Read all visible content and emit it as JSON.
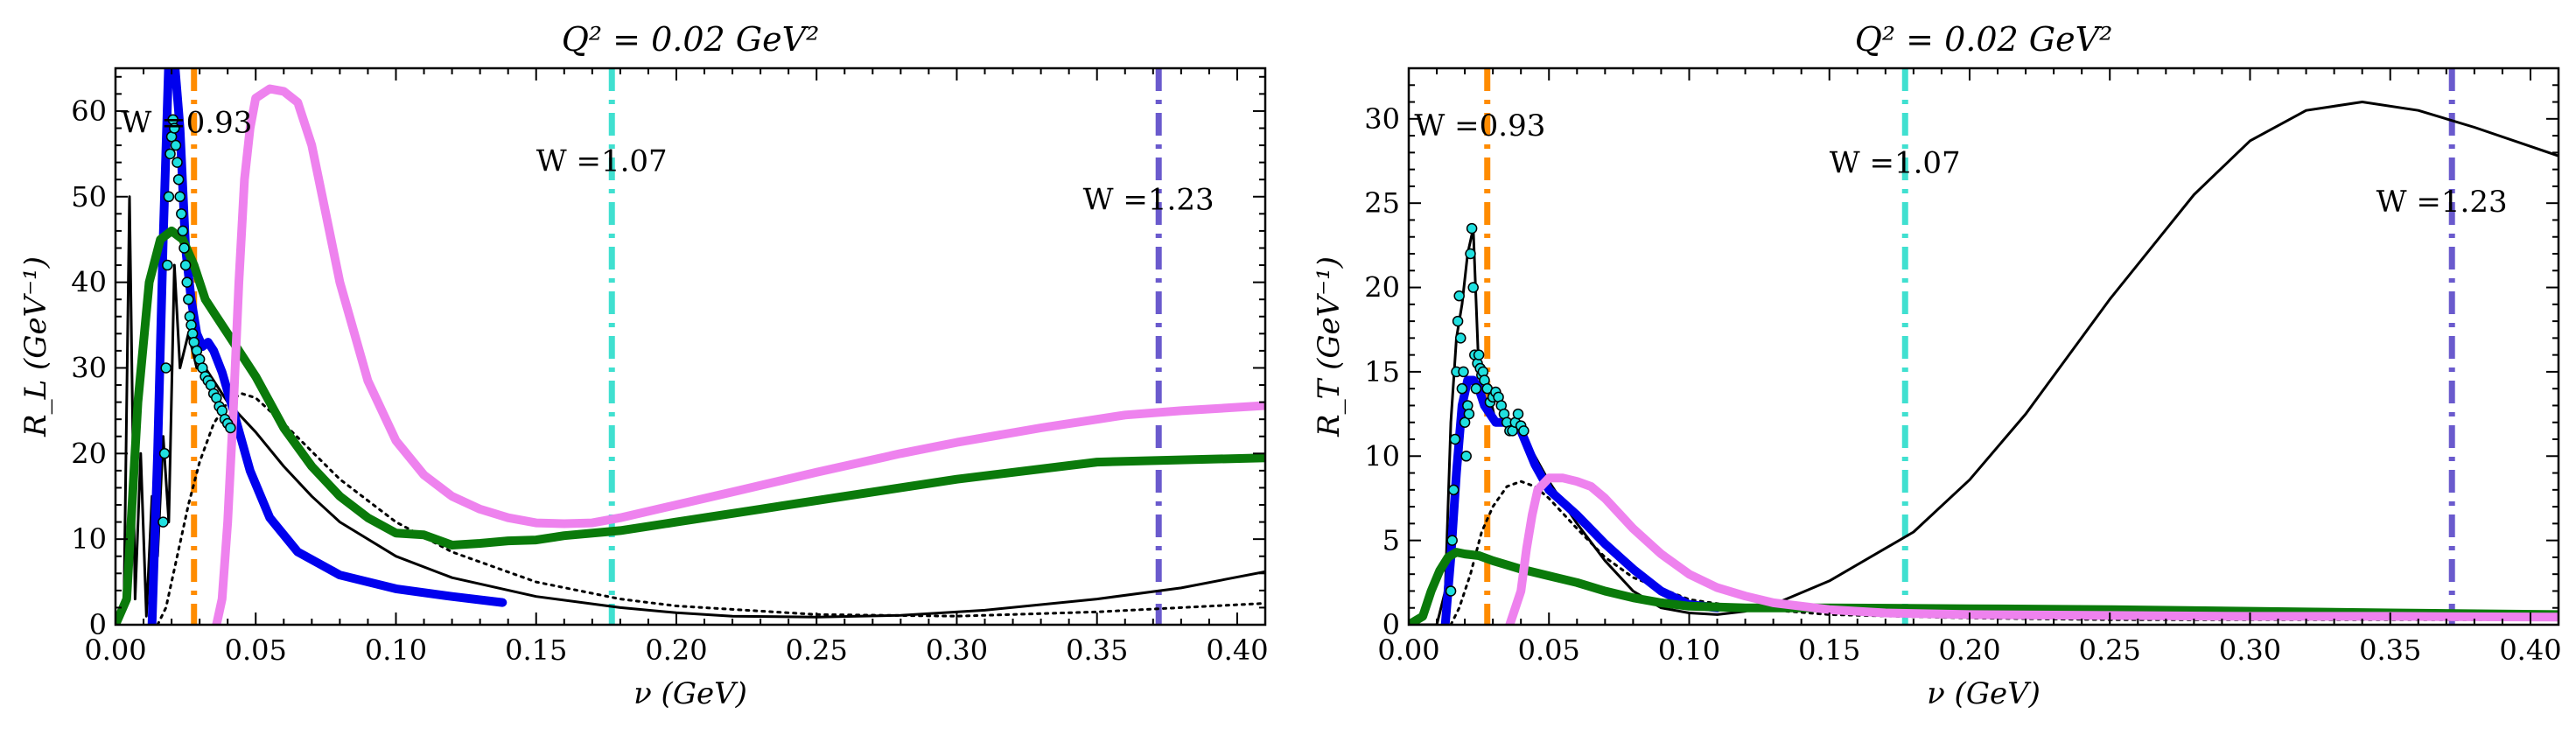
{
  "chart_data": [
    {
      "type": "line",
      "title": "Q² = 0.02 GeV²",
      "xlabel": "ν (GeV)",
      "ylabel": "R_L (GeV⁻¹)",
      "xlim": [
        0.0,
        0.41
      ],
      "ylim": [
        0,
        65
      ],
      "xticks": [
        0.0,
        0.05,
        0.1,
        0.15,
        0.2,
        0.25,
        0.3,
        0.35,
        0.4
      ],
      "xtick_labels": [
        "0.00",
        "0.05",
        "0.10",
        "0.15",
        "0.20",
        "0.25",
        "0.30",
        "0.35",
        "0.40"
      ],
      "yticks": [
        0,
        10,
        20,
        30,
        40,
        50,
        60
      ],
      "ytick_labels": [
        "0",
        "10",
        "20",
        "30",
        "40",
        "50",
        "60"
      ],
      "vlines": [
        {
          "x": 0.028,
          "color": "#ff8c00",
          "label": "W =0.93",
          "label_x": 0.002,
          "label_y": 57.5
        },
        {
          "x": 0.177,
          "color": "#40e0d0",
          "label": "W =1.07",
          "label_x": 0.15,
          "label_y": 53
        },
        {
          "x": 0.372,
          "color": "#6a5acd",
          "label": "W =1.23",
          "label_x": 0.345,
          "label_y": 48.5
        }
      ],
      "series": [
        {
          "color": "#000000",
          "width": 3,
          "dash": "",
          "x": [
            0.0,
            0.003,
            0.005,
            0.007,
            0.009,
            0.011,
            0.013,
            0.015,
            0.017,
            0.019,
            0.021,
            0.023,
            0.026,
            0.029,
            0.032,
            0.036,
            0.04,
            0.05,
            0.06,
            0.07,
            0.08,
            0.1,
            0.12,
            0.15,
            0.18,
            0.2,
            0.22,
            0.25,
            0.28,
            0.31,
            0.35,
            0.38,
            0.41
          ],
          "y": [
            0.5,
            2,
            50,
            3,
            20,
            1,
            15,
            8,
            22,
            12,
            42,
            30,
            34,
            30,
            30,
            28,
            26,
            22.5,
            18.5,
            15,
            12,
            8,
            5.5,
            3.3,
            2.0,
            1.4,
            1.0,
            0.9,
            1.1,
            1.7,
            3.0,
            4.3,
            6.2
          ]
        },
        {
          "color": "#000000",
          "width": 3,
          "dash": "3,6",
          "x": [
            0.015,
            0.018,
            0.022,
            0.026,
            0.03,
            0.035,
            0.04,
            0.045,
            0.05,
            0.06,
            0.08,
            0.1,
            0.12,
            0.15,
            0.18,
            0.2,
            0.25,
            0.3,
            0.35,
            0.41
          ],
          "y": [
            0,
            2,
            8,
            14,
            19,
            23.5,
            26,
            27,
            26.5,
            23.5,
            17,
            12,
            8.5,
            5,
            3,
            2.2,
            1.2,
            1.0,
            1.5,
            2.5
          ]
        },
        {
          "color": "#0000ee",
          "width": 10,
          "dash": "",
          "x": [
            0.013,
            0.015,
            0.017,
            0.019,
            0.021,
            0.023,
            0.025,
            0.027,
            0.029,
            0.031,
            0.033,
            0.035,
            0.038,
            0.042,
            0.048,
            0.055,
            0.065,
            0.08,
            0.1,
            0.12,
            0.138
          ],
          "y": [
            0,
            20,
            45,
            66,
            66,
            58,
            44,
            38,
            34,
            32.5,
            33,
            32,
            29.5,
            25,
            18,
            12.5,
            8.5,
            5.8,
            4.2,
            3.3,
            2.6
          ]
        },
        {
          "color": "#0a7a0a",
          "width": 10,
          "dash": "",
          "x": [
            0.0,
            0.004,
            0.008,
            0.012,
            0.016,
            0.02,
            0.024,
            0.028,
            0.032,
            0.036,
            0.04,
            0.05,
            0.06,
            0.07,
            0.08,
            0.09,
            0.1,
            0.11,
            0.12,
            0.13,
            0.14,
            0.15,
            0.16,
            0.18,
            0.2,
            0.23,
            0.26,
            0.3,
            0.35,
            0.41
          ],
          "y": [
            0,
            3,
            26,
            40,
            45,
            46,
            45,
            42,
            38,
            36,
            34,
            29,
            23,
            18.5,
            15,
            12.5,
            10.7,
            10.5,
            9.3,
            9.5,
            9.8,
            9.9,
            10.4,
            11,
            12,
            13.5,
            15,
            17,
            19,
            19.5
          ]
        },
        {
          "color": "#ee82ee",
          "width": 10,
          "dash": "",
          "x": [
            0.036,
            0.038,
            0.04,
            0.042,
            0.044,
            0.046,
            0.048,
            0.05,
            0.055,
            0.06,
            0.065,
            0.07,
            0.075,
            0.08,
            0.09,
            0.1,
            0.11,
            0.12,
            0.13,
            0.14,
            0.15,
            0.16,
            0.17,
            0.18,
            0.2,
            0.22,
            0.25,
            0.28,
            0.3,
            0.33,
            0.36,
            0.38,
            0.41
          ],
          "y": [
            0,
            3,
            12,
            25,
            40,
            52,
            58,
            61.5,
            62.6,
            62.3,
            61,
            56,
            48,
            40,
            28.5,
            21.5,
            17.5,
            15,
            13.5,
            12.5,
            11.9,
            11.8,
            11.9,
            12.5,
            14,
            15.5,
            17.8,
            20,
            21.3,
            23,
            24.5,
            25,
            25.6
          ]
        }
      ],
      "points": {
        "fill": "#20e0e0",
        "x": [
          0.017,
          0.0175,
          0.018,
          0.0185,
          0.019,
          0.0195,
          0.02,
          0.0205,
          0.021,
          0.0215,
          0.022,
          0.0225,
          0.023,
          0.0235,
          0.024,
          0.0245,
          0.025,
          0.0255,
          0.026,
          0.0265,
          0.027,
          0.0275,
          0.028,
          0.029,
          0.03,
          0.031,
          0.032,
          0.033,
          0.034,
          0.035,
          0.036,
          0.037,
          0.038,
          0.039,
          0.04,
          0.041
        ],
        "y": [
          12,
          20,
          30,
          42,
          50,
          55,
          57,
          59,
          58,
          56,
          54,
          52,
          50,
          48,
          46,
          44,
          42,
          40,
          38,
          36,
          35,
          34,
          33,
          32,
          31,
          30,
          29,
          28.5,
          28,
          27,
          26.5,
          25.5,
          25,
          24,
          23.5,
          23
        ]
      }
    },
    {
      "type": "line",
      "title": "Q² = 0.02 GeV²",
      "xlabel": "ν (GeV)",
      "ylabel": "R_T (GeV⁻¹)",
      "xlim": [
        0.0,
        0.41
      ],
      "ylim": [
        0,
        33
      ],
      "xticks": [
        0.0,
        0.05,
        0.1,
        0.15,
        0.2,
        0.25,
        0.3,
        0.35,
        0.4
      ],
      "xtick_labels": [
        "0.00",
        "0.05",
        "0.10",
        "0.15",
        "0.20",
        "0.25",
        "0.30",
        "0.35",
        "0.40"
      ],
      "yticks": [
        0,
        5,
        10,
        15,
        20,
        25,
        30
      ],
      "ytick_labels": [
        "0",
        "5",
        "10",
        "15",
        "20",
        "25",
        "30"
      ],
      "vlines": [
        {
          "x": 0.028,
          "color": "#ff8c00",
          "label": "W =0.93",
          "label_x": 0.002,
          "label_y": 29
        },
        {
          "x": 0.177,
          "color": "#40e0d0",
          "label": "W =1.07",
          "label_x": 0.15,
          "label_y": 26.8
        },
        {
          "x": 0.372,
          "color": "#6a5acd",
          "label": "W =1.23",
          "label_x": 0.345,
          "label_y": 24.5
        }
      ],
      "series": [
        {
          "color": "#000000",
          "width": 3,
          "dash": "",
          "x": [
            0.0,
            0.01,
            0.013,
            0.015,
            0.017,
            0.019,
            0.021,
            0.023,
            0.025,
            0.027,
            0.029,
            0.031,
            0.035,
            0.04,
            0.045,
            0.05,
            0.06,
            0.07,
            0.08,
            0.09,
            0.1,
            0.11,
            0.12,
            0.13,
            0.15,
            0.18,
            0.2,
            0.22,
            0.25,
            0.28,
            0.3,
            0.32,
            0.34,
            0.36,
            0.38,
            0.41
          ],
          "y": [
            0,
            0,
            2,
            12,
            17,
            19,
            22,
            23.5,
            15,
            13,
            13.5,
            12,
            12,
            11.5,
            10,
            8.5,
            6,
            3.8,
            2,
            1.0,
            0.7,
            0.6,
            0.8,
            1.2,
            2.6,
            5.5,
            8.6,
            12.5,
            19.3,
            25.5,
            28.7,
            30.5,
            31.0,
            30.5,
            29.5,
            27.8
          ]
        },
        {
          "color": "#000000",
          "width": 3,
          "dash": "3,6",
          "x": [
            0.015,
            0.018,
            0.022,
            0.026,
            0.03,
            0.035,
            0.04,
            0.045,
            0.05,
            0.06,
            0.07,
            0.08,
            0.1,
            0.12,
            0.15,
            0.2,
            0.25,
            0.3,
            0.35,
            0.41
          ],
          "y": [
            0,
            1,
            3,
            5.5,
            7,
            8.2,
            8.5,
            8.2,
            7.5,
            5.7,
            4,
            2.8,
            1.5,
            1.0,
            0.6,
            0.4,
            0.3,
            0.3,
            0.3,
            0.3
          ]
        },
        {
          "color": "#0000ee",
          "width": 10,
          "dash": "",
          "x": [
            0.013,
            0.015,
            0.017,
            0.019,
            0.021,
            0.023,
            0.025,
            0.027,
            0.029,
            0.031,
            0.035,
            0.04,
            0.045,
            0.05,
            0.06,
            0.07,
            0.08,
            0.09,
            0.1,
            0.11
          ],
          "y": [
            0,
            4,
            9,
            13,
            14.5,
            14.5,
            14,
            13,
            12.5,
            12,
            12,
            11.5,
            9.5,
            8,
            6.5,
            4.8,
            3.3,
            2.0,
            1.2,
            1.0
          ]
        },
        {
          "color": "#0a7a0a",
          "width": 10,
          "dash": "",
          "x": [
            0.0,
            0.005,
            0.008,
            0.011,
            0.014,
            0.017,
            0.02,
            0.025,
            0.03,
            0.04,
            0.05,
            0.06,
            0.07,
            0.08,
            0.09,
            0.1,
            0.12,
            0.15,
            0.2,
            0.25,
            0.3,
            0.35,
            0.41
          ],
          "y": [
            0,
            0.5,
            2,
            3.2,
            4,
            4.3,
            4.2,
            4.1,
            3.8,
            3.3,
            2.9,
            2.5,
            2.0,
            1.6,
            1.3,
            1.1,
            1.0,
            1.0,
            0.95,
            0.9,
            0.8,
            0.7,
            0.6
          ]
        },
        {
          "color": "#ee82ee",
          "width": 10,
          "dash": "",
          "x": [
            0.036,
            0.04,
            0.042,
            0.044,
            0.046,
            0.05,
            0.055,
            0.06,
            0.065,
            0.07,
            0.075,
            0.08,
            0.09,
            0.1,
            0.11,
            0.12,
            0.13,
            0.15,
            0.17,
            0.2,
            0.25,
            0.3,
            0.35,
            0.41
          ],
          "y": [
            0,
            2,
            4.5,
            6.5,
            8,
            8.7,
            8.7,
            8.5,
            8.2,
            7.5,
            6.6,
            5.7,
            4.2,
            3.0,
            2.2,
            1.7,
            1.3,
            0.9,
            0.7,
            0.6,
            0.55,
            0.5,
            0.5,
            0.45
          ]
        }
      ],
      "points": {
        "fill": "#20e0e0",
        "x": [
          0.015,
          0.0155,
          0.016,
          0.0165,
          0.017,
          0.0175,
          0.018,
          0.0185,
          0.019,
          0.0195,
          0.02,
          0.0205,
          0.021,
          0.0215,
          0.022,
          0.0225,
          0.023,
          0.0235,
          0.024,
          0.0245,
          0.025,
          0.0255,
          0.026,
          0.0265,
          0.027,
          0.028,
          0.029,
          0.03,
          0.031,
          0.032,
          0.033,
          0.034,
          0.035,
          0.036,
          0.037,
          0.038,
          0.039,
          0.04,
          0.041
        ],
        "y": [
          2,
          5,
          8,
          11,
          15,
          18,
          19.5,
          17,
          14,
          15,
          12,
          10,
          13,
          12.5,
          22,
          23.5,
          20,
          16,
          14,
          15.5,
          16,
          15.2,
          14.8,
          15,
          14.5,
          14,
          13.2,
          13.5,
          13.8,
          13.5,
          13,
          12.5,
          12,
          11.5,
          11.5,
          12,
          12.5,
          11.8,
          11.5
        ]
      }
    }
  ]
}
